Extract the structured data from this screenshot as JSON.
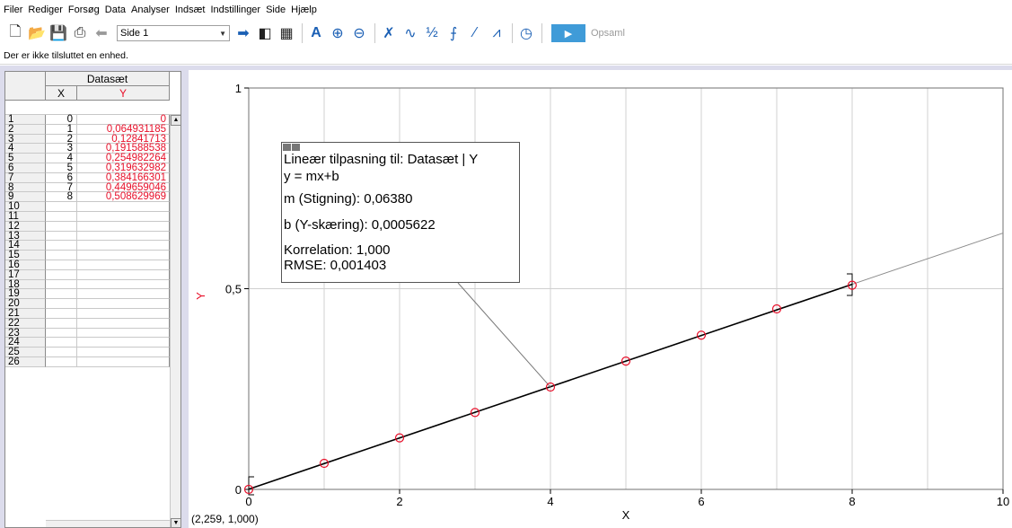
{
  "menu": [
    "Filer",
    "Rediger",
    "Forsøg",
    "Data",
    "Analyser",
    "Indsæt",
    "Indstillinger",
    "Side",
    "Hjælp"
  ],
  "toolbar": {
    "page_select_value": "Side 1",
    "collect_label": "Opsaml",
    "icons": [
      "new-file-icon",
      "open-folder-icon",
      "save-icon",
      "print-icon",
      "back-arrow-icon",
      "forward-arrow-icon",
      "data-browser-icon",
      "calculator-icon",
      "autoscale-icon",
      "zoom-in-icon",
      "zoom-out-icon",
      "examine-icon",
      "tangent-icon",
      "integral-icon",
      "statistics-icon",
      "curve-fit-icon",
      "linear-fit-icon",
      "timer-icon",
      "play-icon"
    ]
  },
  "status_text": "Der er ikke tilsluttet en enhed.",
  "table": {
    "dataset_title": "Datasæt",
    "col_x": "X",
    "col_y": "Y",
    "rows": [
      {
        "n": "1",
        "x": "0",
        "y": "0"
      },
      {
        "n": "2",
        "x": "1",
        "y": "0,064931185"
      },
      {
        "n": "3",
        "x": "2",
        "y": "0,12841713"
      },
      {
        "n": "4",
        "x": "3",
        "y": "0,191588538"
      },
      {
        "n": "5",
        "x": "4",
        "y": "0,254982264"
      },
      {
        "n": "6",
        "x": "5",
        "y": "0,319632982"
      },
      {
        "n": "7",
        "x": "6",
        "y": "0,384166301"
      },
      {
        "n": "8",
        "x": "7",
        "y": "0,449659046"
      },
      {
        "n": "9",
        "x": "8",
        "y": "0,508629969"
      },
      {
        "n": "10",
        "x": "",
        "y": ""
      },
      {
        "n": "11",
        "x": "",
        "y": ""
      },
      {
        "n": "12",
        "x": "",
        "y": ""
      },
      {
        "n": "13",
        "x": "",
        "y": ""
      },
      {
        "n": "14",
        "x": "",
        "y": ""
      },
      {
        "n": "15",
        "x": "",
        "y": ""
      },
      {
        "n": "16",
        "x": "",
        "y": ""
      },
      {
        "n": "17",
        "x": "",
        "y": ""
      },
      {
        "n": "18",
        "x": "",
        "y": ""
      },
      {
        "n": "19",
        "x": "",
        "y": ""
      },
      {
        "n": "20",
        "x": "",
        "y": ""
      },
      {
        "n": "21",
        "x": "",
        "y": ""
      },
      {
        "n": "22",
        "x": "",
        "y": ""
      },
      {
        "n": "23",
        "x": "",
        "y": ""
      },
      {
        "n": "24",
        "x": "",
        "y": ""
      },
      {
        "n": "25",
        "x": "",
        "y": ""
      },
      {
        "n": "26",
        "x": "",
        "y": ""
      }
    ]
  },
  "fit_box": {
    "title": "Lineær tilpasning til: Datasæt | Y",
    "equation": "y = mx+b",
    "slope": "m (Stigning): 0,06380",
    "intercept": "b (Y-skæring): 0,0005622",
    "correlation": "Korrelation: 1,000",
    "rmse": "RMSE: 0,001403"
  },
  "coord_readout": "(2,259, 1,000)",
  "chart_data": {
    "type": "scatter",
    "x": [
      0,
      1,
      2,
      3,
      4,
      5,
      6,
      7,
      8
    ],
    "y": [
      0,
      0.064931185,
      0.12841713,
      0.191588538,
      0.254982264,
      0.319632982,
      0.384166301,
      0.449659046,
      0.508629969
    ],
    "xlabel": "X",
    "ylabel": "Y",
    "xlim": [
      0,
      10
    ],
    "ylim": [
      0,
      1
    ],
    "xticks": [
      "0",
      "2",
      "4",
      "6",
      "8",
      "10"
    ],
    "yticks": [
      "0",
      "0,5",
      "1"
    ],
    "fit": {
      "slope": 0.0638,
      "intercept": 0.0005622
    },
    "grid": true,
    "marker_color": "#e8102a",
    "fit_line_color": "#000000"
  }
}
